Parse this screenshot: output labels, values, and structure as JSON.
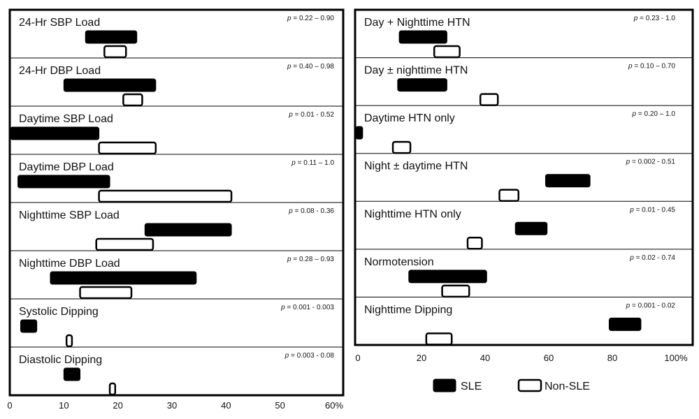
{
  "chart_data": [
    {
      "type": "bar",
      "x_max": 60,
      "ticks": [
        "0",
        "10",
        "20",
        "30",
        "40",
        "50",
        "60%"
      ],
      "series_names": [
        "SLE",
        "Non-SLE"
      ],
      "rows": [
        {
          "label": "24-Hr SBP Load",
          "p_value": "= 0.22 – 0.90",
          "sle": [
            14,
            23.5
          ],
          "non_sle": [
            17.5,
            21.5
          ]
        },
        {
          "label": "24-Hr DBP Load",
          "p_value": "= 0.40 – 0.98",
          "sle": [
            10,
            27
          ],
          "non_sle": [
            21,
            24.5
          ]
        },
        {
          "label": "Daytime SBP Load",
          "p_value": "= 0.01 - 0.52",
          "sle": [
            0,
            16.5
          ],
          "non_sle": [
            16.5,
            27
          ]
        },
        {
          "label": "Daytime DBP Load",
          "p_value": "= 0.11 – 1.0",
          "sle": [
            1.5,
            18.5
          ],
          "non_sle": [
            16.5,
            41
          ]
        },
        {
          "label": "Nighttime  SBP Load",
          "p_value": "= 0.08 - 0.36",
          "sle": [
            25,
            41
          ],
          "non_sle": [
            16,
            26.5
          ]
        },
        {
          "label": "Nighttime DBP Load",
          "p_value": "= 0.28 – 0.93",
          "sle": [
            7.5,
            34.5
          ],
          "non_sle": [
            13,
            22.5
          ]
        },
        {
          "label": "Systolic Dipping",
          "p_value": "= 0.001 - 0.003",
          "sle": [
            2,
            5
          ],
          "non_sle": [
            10.5,
            11.5
          ]
        },
        {
          "label": "Diastolic Dipping",
          "p_value": "= 0.003 - 0.08",
          "sle": [
            10,
            13
          ],
          "non_sle": [
            18.5,
            19.5
          ]
        }
      ]
    },
    {
      "type": "bar",
      "x_max": 100,
      "ticks": [
        "0",
        "20",
        "40",
        "60",
        "80",
        "100%"
      ],
      "series_names": [
        "SLE",
        "Non-SLE"
      ],
      "rows": [
        {
          "label": "Day + Nighttime HTN",
          "p_value": "= 0.23 - 1.0",
          "sle": [
            13,
            28
          ],
          "non_sle": [
            24,
            32
          ]
        },
        {
          "label": "Day ± nighttime HTN",
          "p_value": "= 0.10 – 0.70",
          "sle": [
            12.5,
            28
          ],
          "non_sle": [
            38.5,
            44
          ]
        },
        {
          "label": "Daytime HTN only",
          "p_value": "= 0.20 – 1.0",
          "sle": [
            -1,
            1.5
          ],
          "non_sle": [
            11,
            16.5
          ]
        },
        {
          "label": "Night ± daytime HTN",
          "p_value": "= 0.002 - 0.51",
          "sle": [
            59,
            73
          ],
          "non_sle": [
            44.5,
            50.5
          ]
        },
        {
          "label": "Nighttime HTN only",
          "p_value": "= 0.01 - 0.45",
          "sle": [
            49.5,
            59.5
          ],
          "non_sle": [
            34.5,
            39
          ]
        },
        {
          "label": "Normotension",
          "p_value": "= 0.02 - 0.74",
          "sle": [
            16,
            40.5
          ],
          "non_sle": [
            26.5,
            35
          ]
        },
        {
          "label": "Nighttime Dipping",
          "p_value": "= 0.001 - 0.02",
          "sle": [
            79,
            89
          ],
          "non_sle": [
            21.5,
            29.5
          ]
        }
      ]
    }
  ]
}
